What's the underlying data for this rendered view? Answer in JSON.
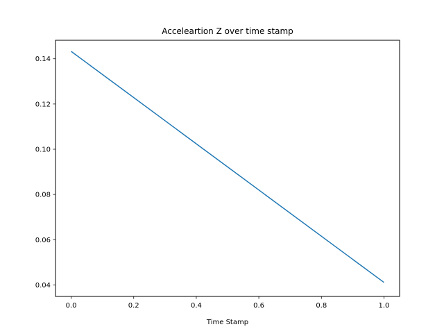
{
  "chart_data": {
    "type": "line",
    "title": "Acceleartion Z over time stamp",
    "xlabel": "Time Stamp",
    "ylabel": "",
    "xlim": [
      -0.05,
      1.05
    ],
    "ylim": [
      0.0349,
      0.1482
    ],
    "x_ticks": [
      0.0,
      0.2,
      0.4,
      0.6,
      0.8,
      1.0
    ],
    "x_tick_labels": [
      "0.0",
      "0.2",
      "0.4",
      "0.6",
      "0.8",
      "1.0"
    ],
    "y_ticks": [
      0.04,
      0.06,
      0.08,
      0.1,
      0.12,
      0.14
    ],
    "y_tick_labels": [
      "0.04",
      "0.06",
      "0.08",
      "0.10",
      "0.12",
      "0.14"
    ],
    "grid": false,
    "legend": "none",
    "series": [
      {
        "color": "#1f77b4",
        "x": [
          0.0,
          1.0
        ],
        "y": [
          0.1433,
          0.0411
        ]
      }
    ]
  }
}
